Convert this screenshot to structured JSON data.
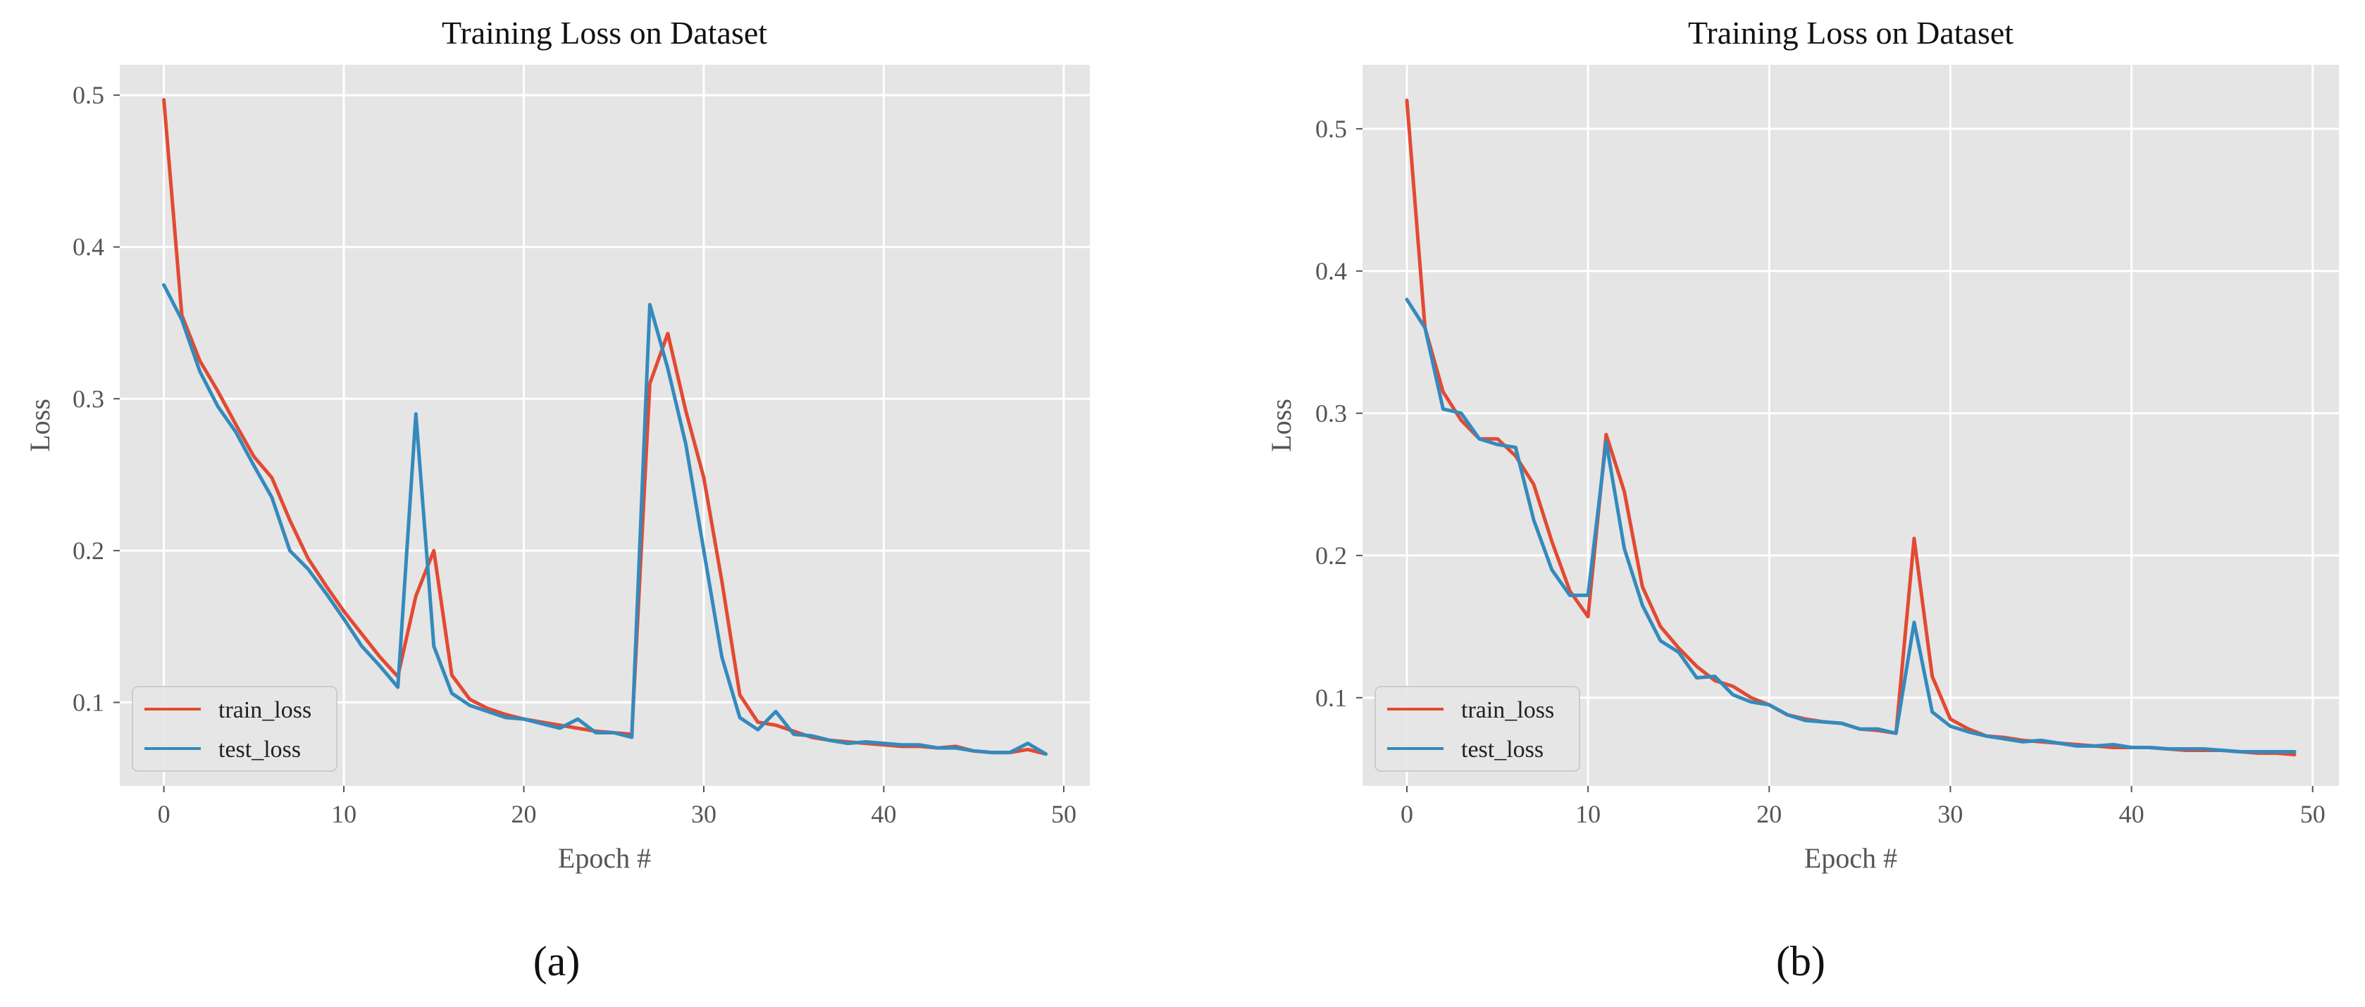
{
  "colors": {
    "train_loss": "#E24A33",
    "test_loss": "#348ABD",
    "panel_bg": "#E5E5E5",
    "grid": "#FFFFFF"
  },
  "chart_data": [
    {
      "type": "line",
      "caption": "(a)",
      "title": "Training Loss on Dataset",
      "xlabel": "Epoch #",
      "ylabel": "Loss",
      "xlim": [
        -2.45,
        51.45
      ],
      "ylim": [
        0.045,
        0.52
      ],
      "xticks": [
        0,
        10,
        20,
        30,
        40,
        50
      ],
      "yticks": [
        0.1,
        0.2,
        0.3,
        0.4,
        0.5
      ],
      "xtick_labels": [
        "0",
        "10",
        "20",
        "30",
        "40",
        "50"
      ],
      "ytick_labels": [
        "0.1",
        "0.2",
        "0.3",
        "0.4",
        "0.5"
      ],
      "grid": true,
      "legend_position": "bottom-left",
      "x": [
        0,
        1,
        2,
        3,
        4,
        5,
        6,
        7,
        8,
        9,
        10,
        11,
        12,
        13,
        14,
        15,
        16,
        17,
        18,
        19,
        20,
        21,
        22,
        23,
        24,
        25,
        26,
        27,
        28,
        29,
        30,
        31,
        32,
        33,
        34,
        35,
        36,
        37,
        38,
        39,
        40,
        41,
        42,
        43,
        44,
        45,
        46,
        47,
        48,
        49
      ],
      "series": [
        {
          "name": "train_loss",
          "color_key": "train_loss",
          "values": [
            0.497,
            0.355,
            0.325,
            0.305,
            0.283,
            0.262,
            0.248,
            0.22,
            0.195,
            0.177,
            0.16,
            0.145,
            0.13,
            0.117,
            0.17,
            0.2,
            0.118,
            0.102,
            0.096,
            0.092,
            0.089,
            0.087,
            0.085,
            0.083,
            0.081,
            0.08,
            0.079,
            0.31,
            0.343,
            0.292,
            0.248,
            0.18,
            0.105,
            0.087,
            0.085,
            0.081,
            0.077,
            0.075,
            0.074,
            0.073,
            0.072,
            0.071,
            0.071,
            0.07,
            0.071,
            0.068,
            0.067,
            0.067,
            0.069,
            0.066
          ]
        },
        {
          "name": "test_loss",
          "color_key": "test_loss",
          "values": [
            0.375,
            0.352,
            0.318,
            0.295,
            0.278,
            0.256,
            0.235,
            0.2,
            0.188,
            0.172,
            0.155,
            0.137,
            0.124,
            0.11,
            0.29,
            0.137,
            0.106,
            0.098,
            0.094,
            0.09,
            0.089,
            0.086,
            0.083,
            0.089,
            0.08,
            0.08,
            0.077,
            0.362,
            0.32,
            0.27,
            0.2,
            0.13,
            0.09,
            0.082,
            0.094,
            0.079,
            0.078,
            0.075,
            0.073,
            0.074,
            0.073,
            0.072,
            0.072,
            0.07,
            0.07,
            0.068,
            0.067,
            0.067,
            0.073,
            0.066
          ]
        }
      ]
    },
    {
      "type": "line",
      "caption": "(b)",
      "title": "Training Loss on Dataset",
      "xlabel": "Epoch #",
      "ylabel": "Loss",
      "xlim": [
        -2.45,
        51.45
      ],
      "ylim": [
        0.038,
        0.545
      ],
      "xticks": [
        0,
        10,
        20,
        30,
        40,
        50
      ],
      "yticks": [
        0.1,
        0.2,
        0.3,
        0.4,
        0.5
      ],
      "xtick_labels": [
        "0",
        "10",
        "20",
        "30",
        "40",
        "50"
      ],
      "ytick_labels": [
        "0.1",
        "0.2",
        "0.3",
        "0.4",
        "0.5"
      ],
      "grid": true,
      "legend_position": "bottom-left",
      "x": [
        0,
        1,
        2,
        3,
        4,
        5,
        6,
        7,
        8,
        9,
        10,
        11,
        12,
        13,
        14,
        15,
        16,
        17,
        18,
        19,
        20,
        21,
        22,
        23,
        24,
        25,
        26,
        27,
        28,
        29,
        30,
        31,
        32,
        33,
        34,
        35,
        36,
        37,
        38,
        39,
        40,
        41,
        42,
        43,
        44,
        45,
        46,
        47,
        48,
        49
      ],
      "series": [
        {
          "name": "train_loss",
          "color_key": "train_loss",
          "values": [
            0.52,
            0.36,
            0.315,
            0.295,
            0.282,
            0.282,
            0.27,
            0.25,
            0.21,
            0.175,
            0.157,
            0.285,
            0.245,
            0.178,
            0.15,
            0.135,
            0.122,
            0.112,
            0.108,
            0.1,
            0.095,
            0.088,
            0.085,
            0.083,
            0.082,
            0.078,
            0.077,
            0.075,
            0.212,
            0.115,
            0.085,
            0.078,
            0.073,
            0.072,
            0.07,
            0.069,
            0.068,
            0.067,
            0.066,
            0.065,
            0.065,
            0.065,
            0.064,
            0.063,
            0.063,
            0.063,
            0.062,
            0.061,
            0.061,
            0.06
          ]
        },
        {
          "name": "test_loss",
          "color_key": "test_loss",
          "values": [
            0.38,
            0.36,
            0.303,
            0.3,
            0.282,
            0.278,
            0.276,
            0.225,
            0.19,
            0.172,
            0.172,
            0.28,
            0.205,
            0.165,
            0.14,
            0.132,
            0.114,
            0.115,
            0.102,
            0.097,
            0.095,
            0.088,
            0.084,
            0.083,
            0.082,
            0.078,
            0.078,
            0.075,
            0.153,
            0.09,
            0.08,
            0.076,
            0.073,
            0.071,
            0.069,
            0.07,
            0.068,
            0.066,
            0.066,
            0.067,
            0.065,
            0.065,
            0.064,
            0.064,
            0.064,
            0.063,
            0.062,
            0.062,
            0.062,
            0.062
          ]
        }
      ]
    }
  ]
}
